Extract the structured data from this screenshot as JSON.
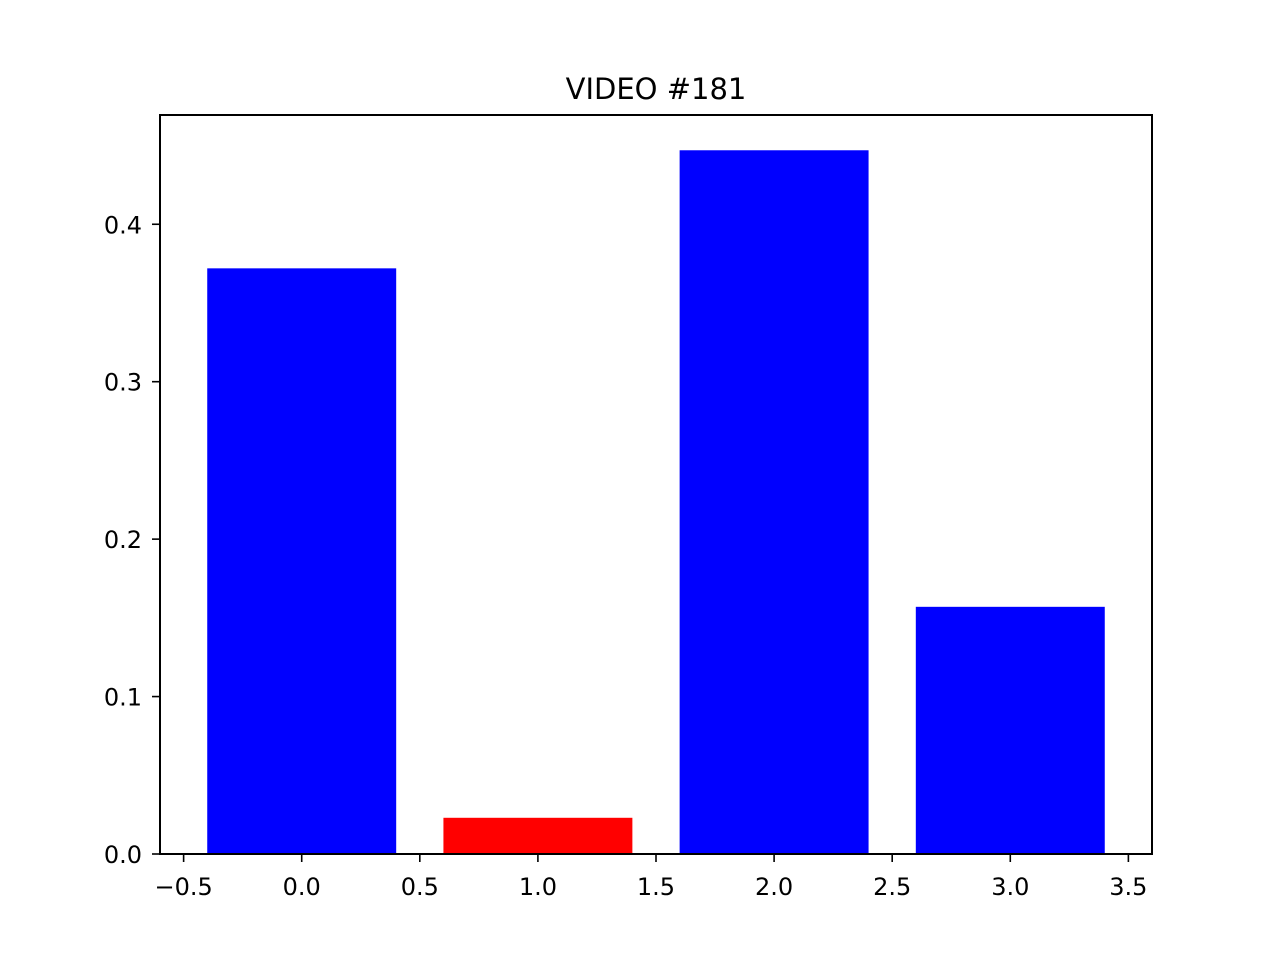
{
  "chart_data": {
    "type": "bar",
    "title": "VIDEO #181",
    "xlabel": "",
    "ylabel": "",
    "x": [
      0,
      1,
      2,
      3
    ],
    "values": [
      0.372,
      0.023,
      0.447,
      0.157
    ],
    "bar_colors": [
      "#0000ff",
      "#ff0000",
      "#0000ff",
      "#0000ff"
    ],
    "bar_width": 0.8,
    "xlim": [
      -0.6,
      3.6
    ],
    "ylim": [
      0,
      0.4694
    ],
    "xticks": [
      -0.5,
      0.0,
      0.5,
      1.0,
      1.5,
      2.0,
      2.5,
      3.0,
      3.5
    ],
    "xtick_labels": [
      "−0.5",
      "0.0",
      "0.5",
      "1.0",
      "1.5",
      "2.0",
      "2.5",
      "3.0",
      "3.5"
    ],
    "yticks": [
      0.0,
      0.1,
      0.2,
      0.3,
      0.4
    ],
    "ytick_labels": [
      "0.0",
      "0.1",
      "0.2",
      "0.3",
      "0.4"
    ],
    "grid": false,
    "legend": "none"
  }
}
